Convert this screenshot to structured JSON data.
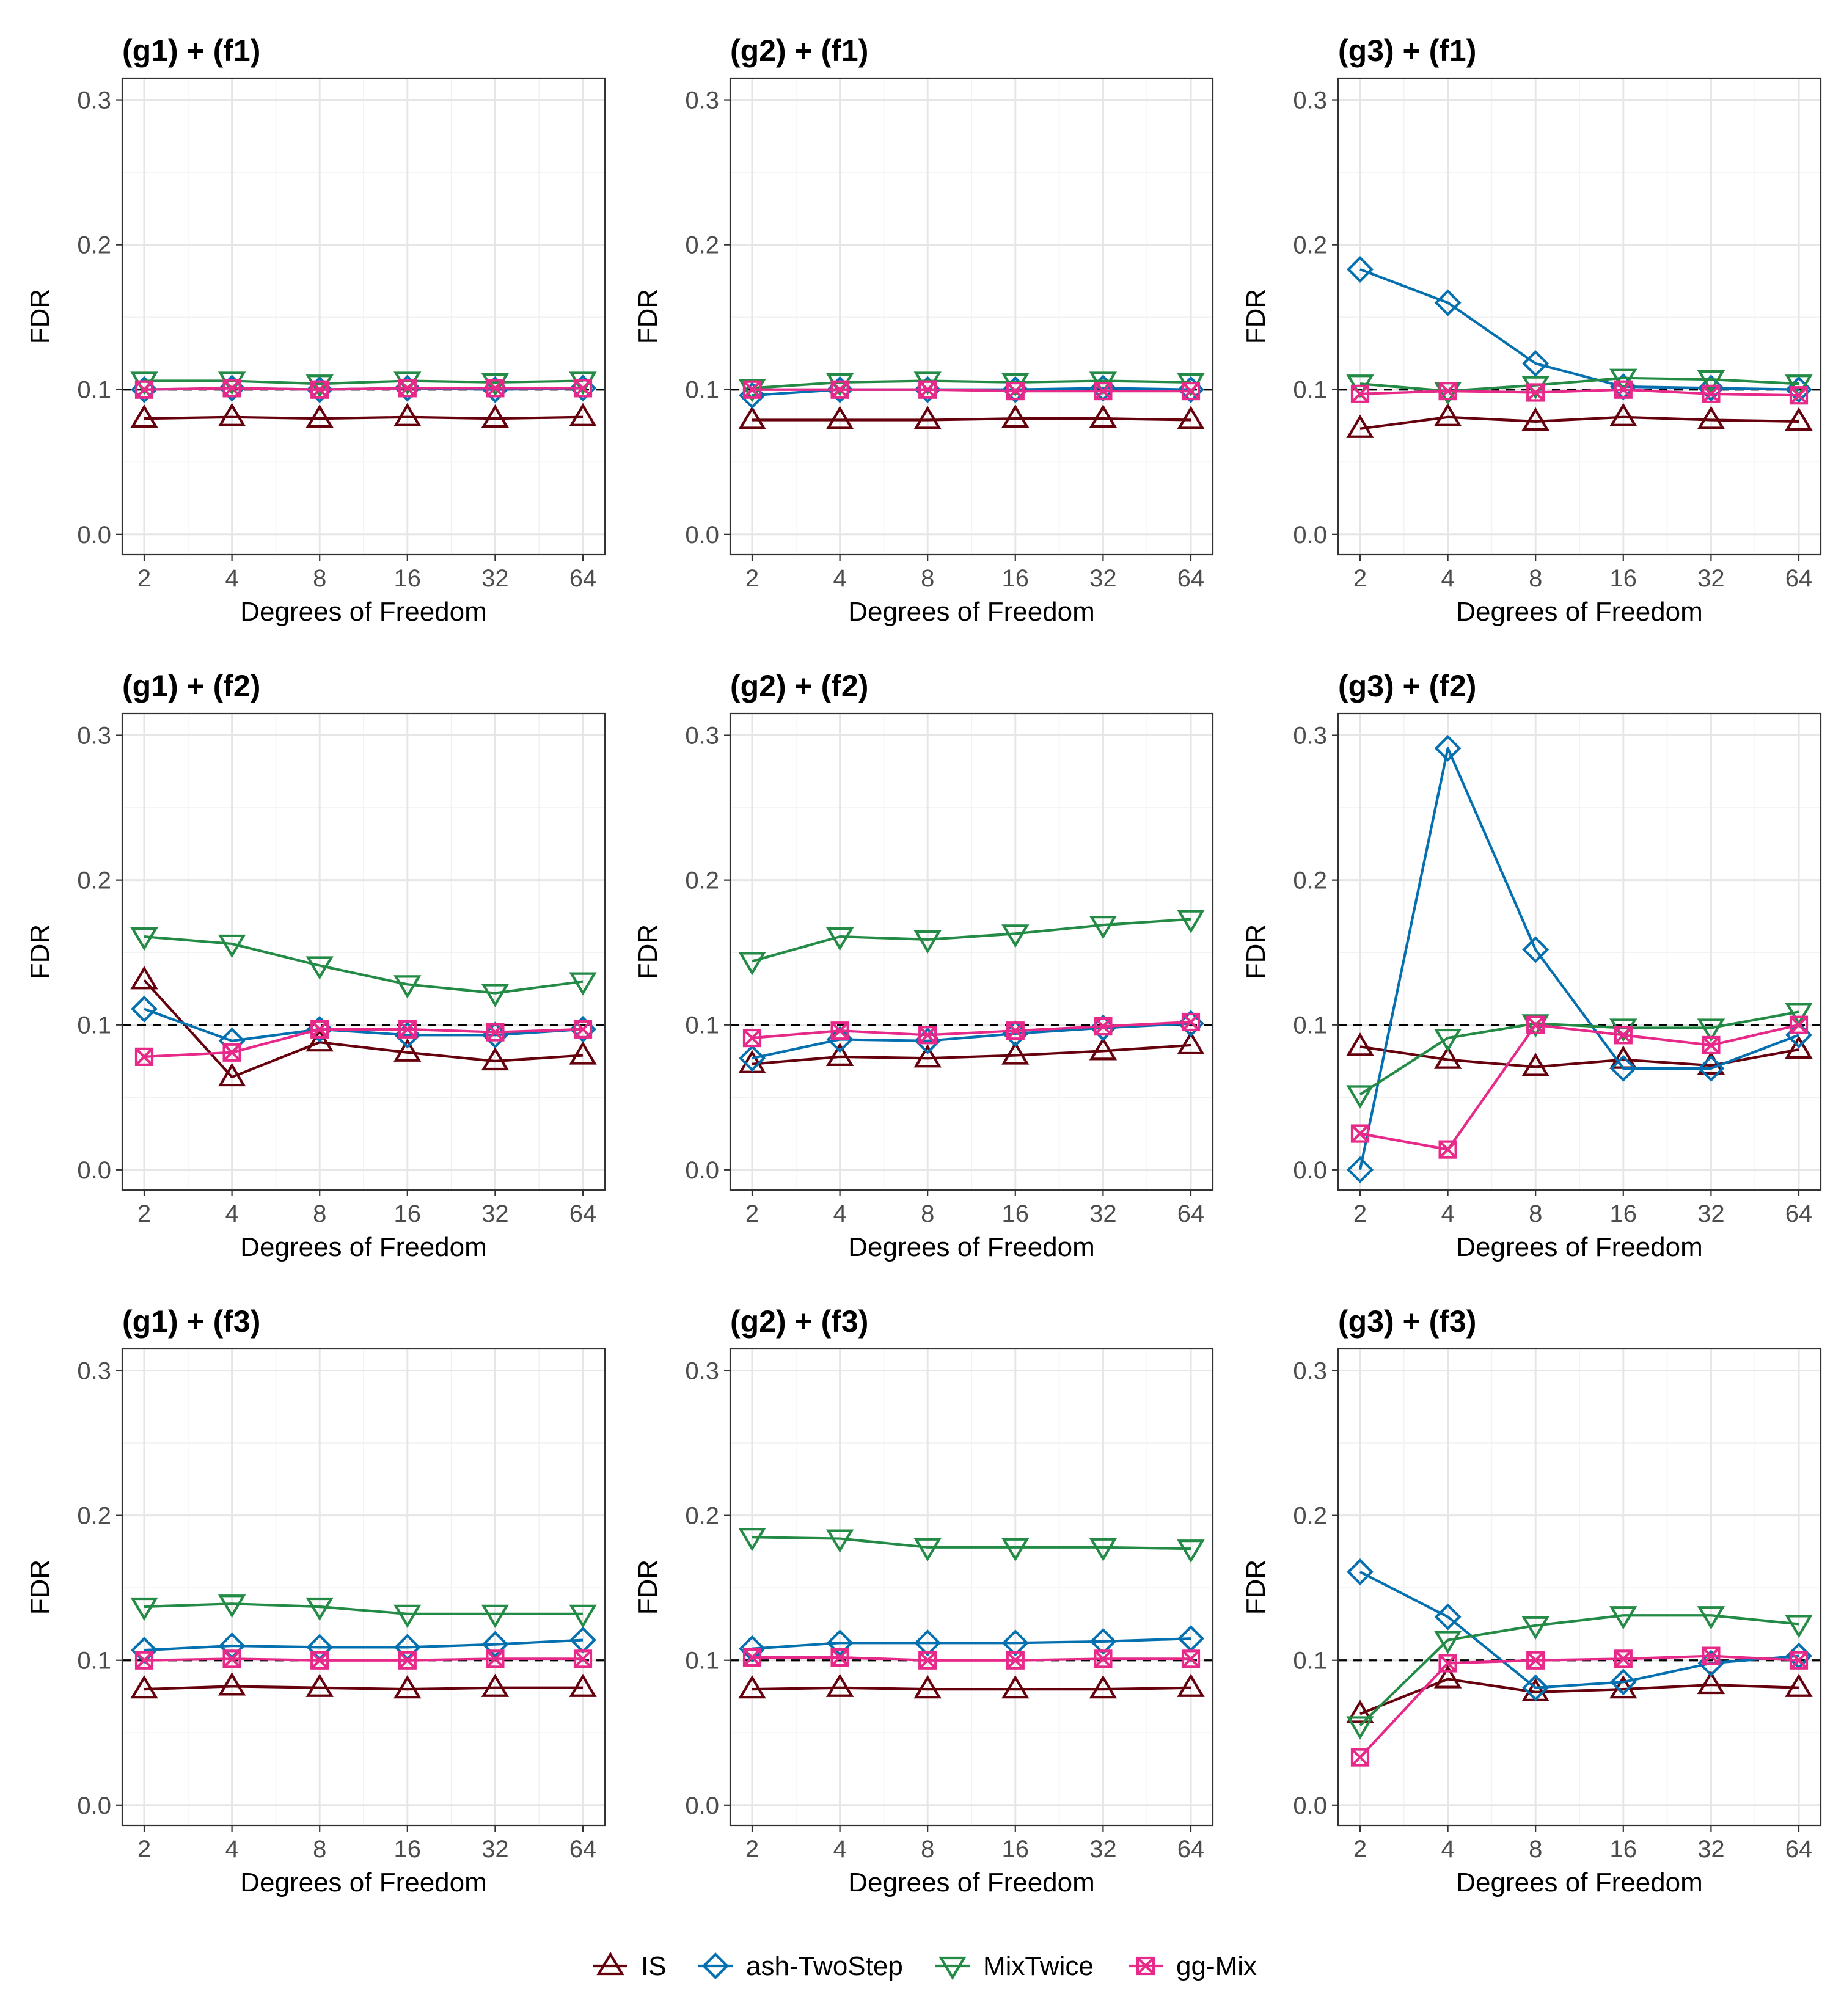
{
  "colors": {
    "IS": "#67000d",
    "ash-TwoStep": "#0570b0",
    "MixTwice": "#238b45",
    "gg-Mix": "#e7298a"
  },
  "legend": {
    "items": [
      {
        "name": "IS",
        "marker": "triangle-up"
      },
      {
        "name": "ash-TwoStep",
        "marker": "diamond"
      },
      {
        "name": "MixTwice",
        "marker": "triangle-down"
      },
      {
        "name": "gg-Mix",
        "marker": "square-x"
      }
    ]
  },
  "chart_data": [
    {
      "type": "line",
      "title": "(g1) + (f1)",
      "xlabel": "Degrees of Freedom",
      "ylabel": "FDR",
      "categories": [
        "2",
        "4",
        "8",
        "16",
        "32",
        "64"
      ],
      "ylim": [
        -0.014,
        0.315
      ],
      "yticks": [
        "0.0",
        "0.1",
        "0.2",
        "0.3"
      ],
      "reference_line": 0.1,
      "series": [
        {
          "name": "IS",
          "values": [
            0.08,
            0.081,
            0.08,
            0.081,
            0.08,
            0.081
          ]
        },
        {
          "name": "ash-TwoStep",
          "values": [
            0.1,
            0.101,
            0.1,
            0.101,
            0.1,
            0.101
          ]
        },
        {
          "name": "MixTwice",
          "values": [
            0.106,
            0.106,
            0.104,
            0.106,
            0.105,
            0.106
          ]
        },
        {
          "name": "gg-Mix",
          "values": [
            0.1,
            0.101,
            0.1,
            0.101,
            0.101,
            0.101
          ]
        }
      ]
    },
    {
      "type": "line",
      "title": "(g2) + (f1)",
      "xlabel": "Degrees of Freedom",
      "ylabel": "FDR",
      "categories": [
        "2",
        "4",
        "8",
        "16",
        "32",
        "64"
      ],
      "ylim": [
        -0.014,
        0.315
      ],
      "yticks": [
        "0.0",
        "0.1",
        "0.2",
        "0.3"
      ],
      "reference_line": 0.1,
      "series": [
        {
          "name": "IS",
          "values": [
            0.079,
            0.079,
            0.079,
            0.08,
            0.08,
            0.079
          ]
        },
        {
          "name": "ash-TwoStep",
          "values": [
            0.096,
            0.1,
            0.1,
            0.1,
            0.101,
            0.1
          ]
        },
        {
          "name": "MixTwice",
          "values": [
            0.101,
            0.105,
            0.106,
            0.105,
            0.106,
            0.105
          ]
        },
        {
          "name": "gg-Mix",
          "values": [
            0.1,
            0.1,
            0.1,
            0.099,
            0.099,
            0.099
          ]
        }
      ]
    },
    {
      "type": "line",
      "title": "(g3) + (f1)",
      "xlabel": "Degrees of Freedom",
      "ylabel": "FDR",
      "categories": [
        "2",
        "4",
        "8",
        "16",
        "32",
        "64"
      ],
      "ylim": [
        -0.014,
        0.315
      ],
      "yticks": [
        "0.0",
        "0.1",
        "0.2",
        "0.3"
      ],
      "reference_line": 0.1,
      "series": [
        {
          "name": "IS",
          "values": [
            0.073,
            0.081,
            0.078,
            0.081,
            0.079,
            0.078
          ]
        },
        {
          "name": "ash-TwoStep",
          "values": [
            0.183,
            0.16,
            0.118,
            0.102,
            0.101,
            0.1
          ]
        },
        {
          "name": "MixTwice",
          "values": [
            0.104,
            0.099,
            0.103,
            0.108,
            0.107,
            0.104
          ]
        },
        {
          "name": "gg-Mix",
          "values": [
            0.097,
            0.099,
            0.098,
            0.1,
            0.097,
            0.096
          ]
        }
      ]
    },
    {
      "type": "line",
      "title": "(g1) + (f2)",
      "xlabel": "Degrees of Freedom",
      "ylabel": "FDR",
      "categories": [
        "2",
        "4",
        "8",
        "16",
        "32",
        "64"
      ],
      "ylim": [
        -0.014,
        0.315
      ],
      "yticks": [
        "0.0",
        "0.1",
        "0.2",
        "0.3"
      ],
      "reference_line": 0.1,
      "series": [
        {
          "name": "IS",
          "values": [
            0.131,
            0.064,
            0.088,
            0.081,
            0.075,
            0.079
          ]
        },
        {
          "name": "ash-TwoStep",
          "values": [
            0.111,
            0.089,
            0.097,
            0.093,
            0.093,
            0.097
          ]
        },
        {
          "name": "MixTwice",
          "values": [
            0.161,
            0.156,
            0.141,
            0.128,
            0.122,
            0.13
          ]
        },
        {
          "name": "gg-Mix",
          "values": [
            0.078,
            0.081,
            0.097,
            0.097,
            0.095,
            0.097
          ]
        }
      ]
    },
    {
      "type": "line",
      "title": "(g2) + (f2)",
      "xlabel": "Degrees of Freedom",
      "ylabel": "FDR",
      "categories": [
        "2",
        "4",
        "8",
        "16",
        "32",
        "64"
      ],
      "ylim": [
        -0.014,
        0.315
      ],
      "yticks": [
        "0.0",
        "0.1",
        "0.2",
        "0.3"
      ],
      "reference_line": 0.1,
      "series": [
        {
          "name": "IS",
          "values": [
            0.073,
            0.078,
            0.077,
            0.079,
            0.082,
            0.086
          ]
        },
        {
          "name": "ash-TwoStep",
          "values": [
            0.077,
            0.09,
            0.089,
            0.094,
            0.098,
            0.101
          ]
        },
        {
          "name": "MixTwice",
          "values": [
            0.144,
            0.161,
            0.159,
            0.163,
            0.169,
            0.173
          ]
        },
        {
          "name": "gg-Mix",
          "values": [
            0.091,
            0.096,
            0.093,
            0.096,
            0.099,
            0.102
          ]
        }
      ]
    },
    {
      "type": "line",
      "title": "(g3) + (f2)",
      "xlabel": "Degrees of Freedom",
      "ylabel": "FDR",
      "categories": [
        "2",
        "4",
        "8",
        "16",
        "32",
        "64"
      ],
      "ylim": [
        -0.014,
        0.315
      ],
      "yticks": [
        "0.0",
        "0.1",
        "0.2",
        "0.3"
      ],
      "reference_line": 0.1,
      "series": [
        {
          "name": "IS",
          "values": [
            0.085,
            0.076,
            0.071,
            0.076,
            0.072,
            0.083
          ]
        },
        {
          "name": "ash-TwoStep",
          "values": [
            0.0,
            0.291,
            0.152,
            0.07,
            0.07,
            0.093
          ]
        },
        {
          "name": "MixTwice",
          "values": [
            0.052,
            0.091,
            0.101,
            0.098,
            0.098,
            0.109
          ]
        },
        {
          "name": "gg-Mix",
          "values": [
            0.025,
            0.014,
            0.1,
            0.093,
            0.086,
            0.1
          ]
        }
      ]
    },
    {
      "type": "line",
      "title": "(g1) + (f3)",
      "xlabel": "Degrees of Freedom",
      "ylabel": "FDR",
      "categories": [
        "2",
        "4",
        "8",
        "16",
        "32",
        "64"
      ],
      "ylim": [
        -0.014,
        0.315
      ],
      "yticks": [
        "0.0",
        "0.1",
        "0.2",
        "0.3"
      ],
      "reference_line": 0.1,
      "series": [
        {
          "name": "IS",
          "values": [
            0.08,
            0.082,
            0.081,
            0.08,
            0.081,
            0.081
          ]
        },
        {
          "name": "ash-TwoStep",
          "values": [
            0.107,
            0.11,
            0.109,
            0.109,
            0.111,
            0.114
          ]
        },
        {
          "name": "MixTwice",
          "values": [
            0.137,
            0.139,
            0.137,
            0.132,
            0.132,
            0.132
          ]
        },
        {
          "name": "gg-Mix",
          "values": [
            0.1,
            0.101,
            0.1,
            0.1,
            0.101,
            0.101
          ]
        }
      ]
    },
    {
      "type": "line",
      "title": "(g2) + (f3)",
      "xlabel": "Degrees of Freedom",
      "ylabel": "FDR",
      "categories": [
        "2",
        "4",
        "8",
        "16",
        "32",
        "64"
      ],
      "ylim": [
        -0.014,
        0.315
      ],
      "yticks": [
        "0.0",
        "0.1",
        "0.2",
        "0.3"
      ],
      "reference_line": 0.1,
      "series": [
        {
          "name": "IS",
          "values": [
            0.08,
            0.081,
            0.08,
            0.08,
            0.08,
            0.081
          ]
        },
        {
          "name": "ash-TwoStep",
          "values": [
            0.108,
            0.112,
            0.112,
            0.112,
            0.113,
            0.115
          ]
        },
        {
          "name": "MixTwice",
          "values": [
            0.185,
            0.184,
            0.178,
            0.178,
            0.178,
            0.177
          ]
        },
        {
          "name": "gg-Mix",
          "values": [
            0.102,
            0.102,
            0.1,
            0.1,
            0.101,
            0.101
          ]
        }
      ]
    },
    {
      "type": "line",
      "title": "(g3) + (f3)",
      "xlabel": "Degrees of Freedom",
      "ylabel": "FDR",
      "categories": [
        "2",
        "4",
        "8",
        "16",
        "32",
        "64"
      ],
      "ylim": [
        -0.014,
        0.315
      ],
      "yticks": [
        "0.0",
        "0.1",
        "0.2",
        "0.3"
      ],
      "reference_line": 0.1,
      "series": [
        {
          "name": "IS",
          "values": [
            0.063,
            0.087,
            0.078,
            0.08,
            0.083,
            0.081
          ]
        },
        {
          "name": "ash-TwoStep",
          "values": [
            0.161,
            0.13,
            0.081,
            0.085,
            0.098,
            0.103
          ]
        },
        {
          "name": "MixTwice",
          "values": [
            0.055,
            0.114,
            0.124,
            0.131,
            0.131,
            0.125
          ]
        },
        {
          "name": "gg-Mix",
          "values": [
            0.033,
            0.098,
            0.1,
            0.101,
            0.103,
            0.1
          ]
        }
      ]
    }
  ]
}
